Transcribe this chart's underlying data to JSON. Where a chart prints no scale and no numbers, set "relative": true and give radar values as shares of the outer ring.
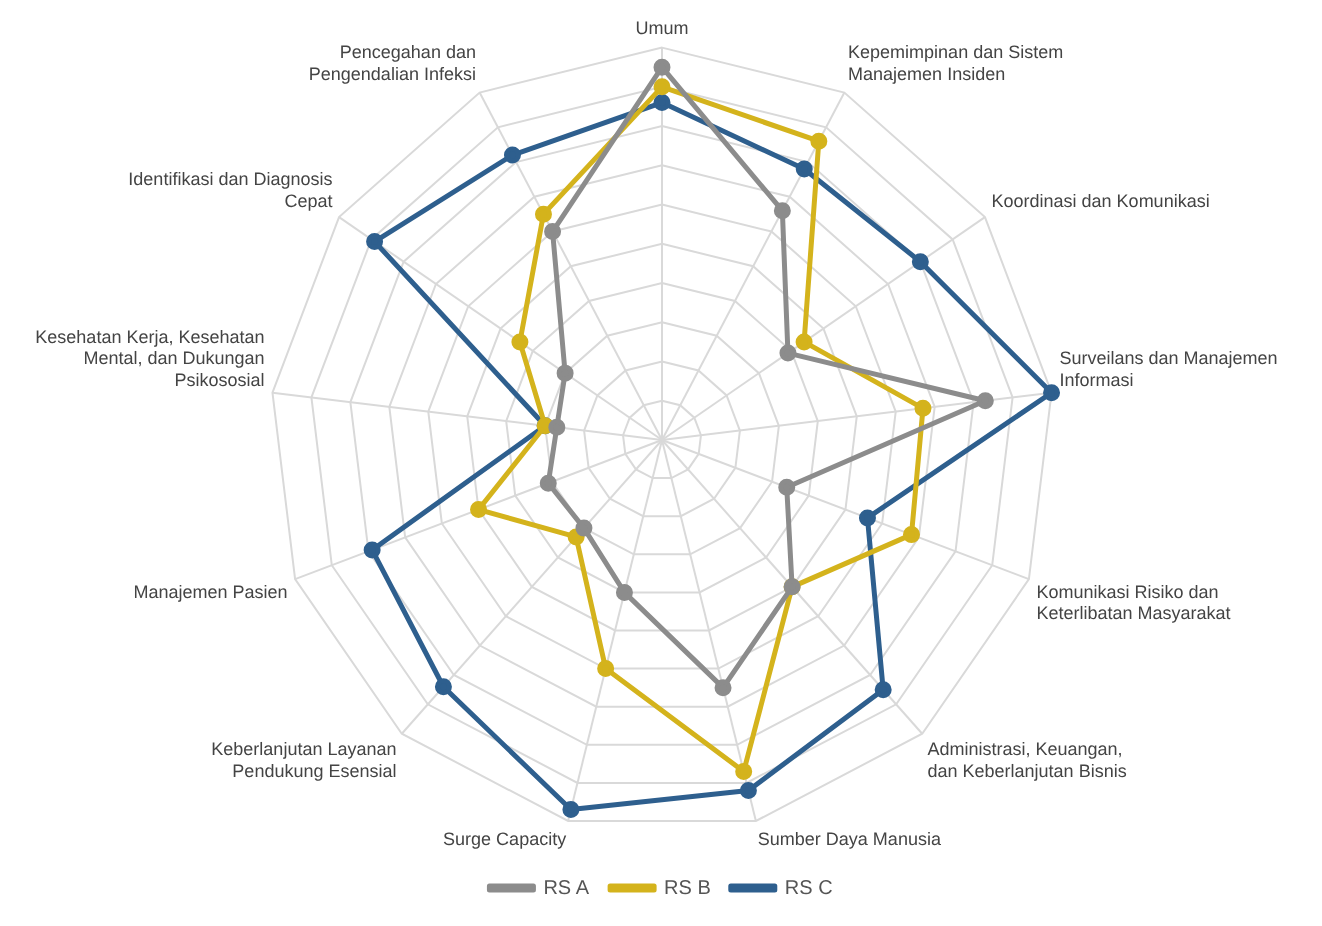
{
  "chart_data": {
    "type": "radar",
    "relative": true,
    "legend": "bottom",
    "marker": "circle",
    "grid": true,
    "categories": [
      "Umum",
      "Kepemimpinan dan Sistem Manajemen Insiden",
      "Koordinasi dan Komunikasi",
      "Surveilans dan Manajemen Informasi",
      "Komunikasi Risiko dan Keterlibatan Masyarakat",
      "Administrasi, Keuangan, dan Keberlanjutan Bisnis",
      "Sumber Daya Manusia",
      "Surge Capacity",
      "Keberlanjutan Layanan Pendukung Esensial",
      "Manajemen Pasien",
      "Kesehatan Kerja, Kesehatan Mental, dan Dukungan Psikososial",
      "Identifikasi dan Diagnosis Cepat",
      "Pencegahan dan Pengendalian Infeksi"
    ],
    "series": [
      {
        "name": "RS A",
        "color": "#8c8c8c",
        "values": [
          0.95,
          0.66,
          0.39,
          0.83,
          0.34,
          0.5,
          0.65,
          0.4,
          0.3,
          0.31,
          0.27,
          0.3,
          0.6
        ]
      },
      {
        "name": "RS B",
        "color": "#d4b31c",
        "values": [
          0.9,
          0.86,
          0.44,
          0.67,
          0.68,
          0.5,
          0.87,
          0.6,
          0.33,
          0.5,
          0.3,
          0.44,
          0.65
        ]
      },
      {
        "name": "RS C",
        "color": "#2e5f8e",
        "values": [
          0.86,
          0.78,
          0.8,
          1.0,
          0.56,
          0.85,
          0.92,
          0.97,
          0.84,
          0.79,
          0.3,
          0.89,
          0.82
        ]
      }
    ]
  }
}
